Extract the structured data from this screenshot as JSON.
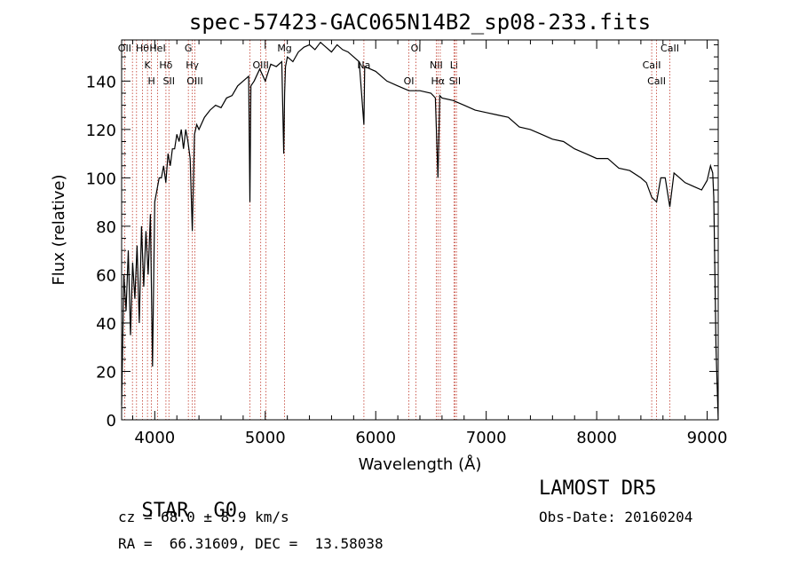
{
  "chart_data": {
    "type": "line",
    "title": "spec-57423-GAC065N14B2_sp08-233.fits",
    "xlabel": "Wavelength (Å)",
    "ylabel": "Flux (relative)",
    "xlim": [
      3700,
      9100
    ],
    "ylim": [
      0,
      157
    ],
    "x_ticks": [
      4000,
      5000,
      6000,
      7000,
      8000,
      9000
    ],
    "y_ticks": [
      0,
      20,
      40,
      60,
      80,
      100,
      120,
      140
    ],
    "grid": false,
    "series": [
      {
        "color": "#000000",
        "x": [
          3700,
          3720,
          3740,
          3760,
          3780,
          3800,
          3820,
          3840,
          3860,
          3880,
          3900,
          3920,
          3940,
          3960,
          3980,
          4000,
          4020,
          4040,
          4060,
          4080,
          4100,
          4120,
          4140,
          4160,
          4180,
          4200,
          4220,
          4240,
          4260,
          4280,
          4300,
          4320,
          4340,
          4360,
          4380,
          4400,
          4450,
          4500,
          4550,
          4600,
          4650,
          4700,
          4750,
          4800,
          4850,
          4861,
          4870,
          4900,
          4950,
          5000,
          5050,
          5100,
          5150,
          5167,
          5175,
          5183,
          5200,
          5250,
          5300,
          5350,
          5400,
          5450,
          5500,
          5550,
          5600,
          5650,
          5700,
          5750,
          5800,
          5850,
          5893,
          5900,
          5950,
          6000,
          6100,
          6200,
          6300,
          6400,
          6500,
          6540,
          6563,
          6580,
          6600,
          6700,
          6800,
          6900,
          7000,
          7100,
          7200,
          7300,
          7400,
          7500,
          7600,
          7700,
          7800,
          7900,
          8000,
          8100,
          8200,
          8300,
          8400,
          8450,
          8498,
          8542,
          8580,
          8620,
          8662,
          8700,
          8800,
          8850,
          8900,
          8950,
          9000,
          9030,
          9050,
          9060,
          9080,
          9100
        ],
        "y": [
          6,
          60,
          45,
          70,
          35,
          65,
          50,
          72,
          40,
          80,
          55,
          78,
          60,
          85,
          22,
          90,
          95,
          100,
          100,
          105,
          98,
          110,
          105,
          112,
          112,
          118,
          115,
          120,
          112,
          120,
          115,
          108,
          78,
          118,
          122,
          120,
          125,
          128,
          130,
          129,
          133,
          134,
          138,
          140,
          142,
          90,
          138,
          140,
          145,
          140,
          147,
          146,
          148,
          110,
          135,
          146,
          150,
          148,
          152,
          154,
          155,
          153,
          156,
          154,
          152,
          155,
          153,
          152,
          150,
          148,
          122,
          146,
          145,
          144,
          140,
          138,
          136,
          136,
          135,
          133,
          100,
          134,
          133,
          132,
          130,
          128,
          127,
          126,
          125,
          121,
          120,
          118,
          116,
          115,
          112,
          110,
          108,
          108,
          104,
          103,
          100,
          98,
          92,
          90,
          100,
          100,
          88,
          102,
          98,
          97,
          96,
          95,
          99,
          105,
          102,
          92,
          30,
          0
        ]
      }
    ],
    "line_markers": [
      {
        "wavelength": 3727,
        "label": "OII"
      },
      {
        "wavelength": 3798,
        "label": ""
      },
      {
        "wavelength": 3835,
        "label": ""
      },
      {
        "wavelength": 3889,
        "label": "Hθ"
      },
      {
        "wavelength": 3934,
        "label": "K"
      },
      {
        "wavelength": 3970,
        "label": "H"
      },
      {
        "wavelength": 4026,
        "label": "HeI"
      },
      {
        "wavelength": 4101,
        "label": "Hδ"
      },
      {
        "wavelength": 4128,
        "label": "SII"
      },
      {
        "wavelength": 4304,
        "label": "G"
      },
      {
        "wavelength": 4340,
        "label": "Hγ"
      },
      {
        "wavelength": 4363,
        "label": "OIII"
      },
      {
        "wavelength": 4861,
        "label": ""
      },
      {
        "wavelength": 4959,
        "label": "OIII"
      },
      {
        "wavelength": 5007,
        "label": ""
      },
      {
        "wavelength": 5175,
        "label": "Mg"
      },
      {
        "wavelength": 5893,
        "label": "Na"
      },
      {
        "wavelength": 6300,
        "label": "OI"
      },
      {
        "wavelength": 6364,
        "label": "OI"
      },
      {
        "wavelength": 6548,
        "label": "NII"
      },
      {
        "wavelength": 6563,
        "label": "Hα"
      },
      {
        "wavelength": 6584,
        "label": ""
      },
      {
        "wavelength": 6708,
        "label": "Li"
      },
      {
        "wavelength": 6717,
        "label": "SII"
      },
      {
        "wavelength": 6731,
        "label": ""
      },
      {
        "wavelength": 8498,
        "label": "CaII"
      },
      {
        "wavelength": 8542,
        "label": "CaII"
      },
      {
        "wavelength": 8662,
        "label": "CaII"
      }
    ]
  },
  "info": {
    "class": "STAR",
    "subclass": "G0",
    "survey": "LAMOST DR5",
    "cz": "cz = 68.0 ± 8.9 km/s",
    "obs_date": "Obs-Date: 20160204",
    "coords": "RA =  66.31609, DEC =  13.58038"
  }
}
